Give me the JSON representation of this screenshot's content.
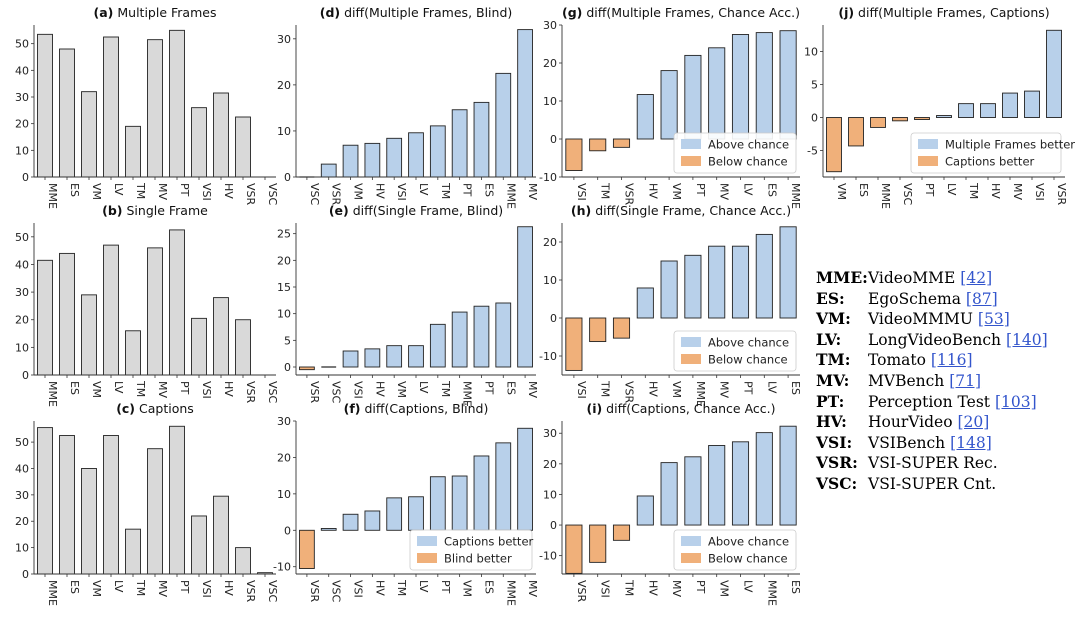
{
  "chart_data": [
    {
      "id": "a",
      "type": "bar",
      "title_label": "(a)",
      "title": "Multiple Frames",
      "categories": [
        "MME",
        "ES",
        "VM",
        "LV",
        "TM",
        "MV",
        "PT",
        "VSI",
        "HV",
        "VSR",
        "VSC"
      ],
      "values": [
        53.5,
        48,
        32,
        52.5,
        19,
        51.5,
        55,
        26,
        31.5,
        22.5,
        0
      ],
      "ylim": [
        0,
        57
      ],
      "yticks": [
        0,
        10,
        20,
        30,
        40,
        50
      ],
      "colors": {
        "bar": "#d9d9d9"
      }
    },
    {
      "id": "b",
      "type": "bar",
      "title_label": "(b)",
      "title": "Single Frame",
      "categories": [
        "MME",
        "ES",
        "VM",
        "LV",
        "TM",
        "MV",
        "PT",
        "VSI",
        "HV",
        "VSR",
        "VSC"
      ],
      "values": [
        41.5,
        44,
        29,
        47,
        16,
        46,
        52.5,
        20.5,
        28,
        20,
        0
      ],
      "ylim": [
        0,
        55
      ],
      "yticks": [
        0,
        10,
        20,
        30,
        40,
        50
      ],
      "colors": {
        "bar": "#d9d9d9"
      }
    },
    {
      "id": "c",
      "type": "bar",
      "title_label": "(c)",
      "title": "Captions",
      "categories": [
        "MME",
        "ES",
        "VM",
        "LV",
        "TM",
        "MV",
        "PT",
        "VSI",
        "HV",
        "VSR",
        "VSC"
      ],
      "values": [
        55.5,
        52.5,
        40,
        52.5,
        17,
        47.5,
        56,
        22,
        29.5,
        10,
        0.5
      ],
      "ylim": [
        0,
        58
      ],
      "yticks": [
        0,
        10,
        20,
        30,
        40,
        50
      ],
      "colors": {
        "bar": "#d9d9d9"
      }
    },
    {
      "id": "d",
      "type": "bar",
      "title_label": "(d)",
      "title": "diff(Multiple Frames, Blind)",
      "categories": [
        "VSC",
        "VSR",
        "VM",
        "HV",
        "VSI",
        "LV",
        "TM",
        "PT",
        "ES",
        "MME",
        "MV"
      ],
      "values": [
        0,
        2.8,
        6.9,
        7.3,
        8.4,
        9.6,
        11.1,
        14.6,
        16.2,
        22.5,
        32
      ],
      "ylim": [
        0,
        33
      ],
      "yticks": [
        0,
        10,
        20,
        30
      ],
      "legend": null
    },
    {
      "id": "e",
      "type": "bar",
      "title_label": "(e)",
      "title": "diff(Single Frame, Blind)",
      "categories": [
        "VSR",
        "VSC",
        "VSI",
        "HV",
        "VM",
        "LV",
        "TM",
        "MME",
        "PT",
        "ES",
        "MV"
      ],
      "values": [
        -0.5,
        0,
        3,
        3.4,
        4,
        4,
        8,
        10.3,
        11.4,
        12,
        26.3
      ],
      "ylim": [
        -1.5,
        27
      ],
      "yticks": [
        0,
        5,
        10,
        15,
        20,
        25
      ],
      "legend": null
    },
    {
      "id": "f",
      "type": "bar",
      "title_label": "(f)",
      "title": "diff(Captions, Blind)",
      "categories": [
        "VSR",
        "VSC",
        "VSI",
        "HV",
        "TM",
        "LV",
        "PT",
        "VM",
        "ES",
        "MME",
        "MV"
      ],
      "values": [
        -10.5,
        0.5,
        4.4,
        5.3,
        8.9,
        9.2,
        14.7,
        14.9,
        20.4,
        24,
        28
      ],
      "ylim": [
        -12,
        30
      ],
      "yticks": [
        -10,
        0,
        10,
        20,
        30
      ],
      "legend": {
        "position": "bottom-right",
        "entries": [
          "Captions better",
          "Blind better"
        ]
      }
    },
    {
      "id": "g",
      "type": "bar",
      "title_label": "(g)",
      "title": "diff(Multiple Frames, Chance Acc.)",
      "categories": [
        "VSI",
        "TM",
        "VSR",
        "HV",
        "VM",
        "PT",
        "MV",
        "LV",
        "ES",
        "MME"
      ],
      "values": [
        -8.3,
        -3.1,
        -2.2,
        11.7,
        18,
        22,
        24,
        27.5,
        28,
        28.5
      ],
      "ylim": [
        -10,
        30
      ],
      "yticks": [
        -10,
        0,
        10,
        20,
        30
      ],
      "legend": {
        "position": "bottom-right",
        "entries": [
          "Above chance",
          "Below chance"
        ]
      }
    },
    {
      "id": "h",
      "type": "bar",
      "title_label": "(h)",
      "title": "diff(Single Frame, Chance Acc.)",
      "categories": [
        "VSI",
        "TM",
        "VSR",
        "HV",
        "VM",
        "MME",
        "MV",
        "PT",
        "LV",
        "ES"
      ],
      "values": [
        -13.8,
        -6.2,
        -5.3,
        7.9,
        15,
        16.5,
        18.9,
        18.9,
        22,
        24
      ],
      "ylim": [
        -15,
        25
      ],
      "yticks": [
        -10,
        0,
        10,
        20
      ],
      "legend": {
        "position": "bottom-right",
        "entries": [
          "Above chance",
          "Below chance"
        ]
      }
    },
    {
      "id": "i",
      "type": "bar",
      "title_label": "(i)",
      "title": "diff(Captions, Chance Acc.)",
      "categories": [
        "VSR",
        "VSI",
        "TM",
        "HV",
        "MV",
        "PT",
        "VM",
        "LV",
        "MME",
        "ES"
      ],
      "values": [
        -15.8,
        -12.2,
        -5,
        9.5,
        20.4,
        22.3,
        26,
        27.2,
        30.2,
        32.3
      ],
      "ylim": [
        -16,
        34
      ],
      "yticks": [
        -10,
        0,
        10,
        20,
        30
      ],
      "legend": {
        "position": "bottom-right",
        "entries": [
          "Above chance",
          "Below chance"
        ]
      }
    },
    {
      "id": "j",
      "type": "bar",
      "title_label": "(j)",
      "title": "diff(Multiple Frames, Captions)",
      "categories": [
        "VM",
        "ES",
        "MME",
        "VSC",
        "PT",
        "LV",
        "TM",
        "HV",
        "MV",
        "VSI",
        "VSR"
      ],
      "values": [
        -8.2,
        -4.3,
        -1.5,
        -0.5,
        -0.3,
        0.3,
        2.1,
        2.1,
        3.7,
        4,
        13.2
      ],
      "ylim": [
        -9,
        14
      ],
      "yticks": [
        -5,
        0,
        5,
        10
      ],
      "legend": {
        "position": "bottom-right",
        "entries": [
          "Multiple Frames better",
          "Captions better"
        ]
      }
    }
  ],
  "colors": {
    "positive": "#b8d0ea",
    "negative": "#f0b07a",
    "neutral": "#d9d9d9",
    "edge": "#222222"
  },
  "abbreviations": [
    {
      "key": "MME",
      "name": "VideoMME",
      "ref": "[42]"
    },
    {
      "key": "ES",
      "name": "EgoSchema",
      "ref": "[87]"
    },
    {
      "key": "VM",
      "name": "VideoMMMU",
      "ref": "[53]"
    },
    {
      "key": "LV",
      "name": "LongVideoBench",
      "ref": "[140]"
    },
    {
      "key": "TM",
      "name": "Tomato",
      "ref": "[116]"
    },
    {
      "key": "MV",
      "name": "MVBench",
      "ref": "[71]"
    },
    {
      "key": "PT",
      "name": "Perception Test",
      "ref": "[103]"
    },
    {
      "key": "HV",
      "name": "HourVideo",
      "ref": "[20]"
    },
    {
      "key": "VSI",
      "name": "VSIBench",
      "ref": "[148]"
    },
    {
      "key": "VSR",
      "name": "VSI-SUPER Rec.",
      "ref": ""
    },
    {
      "key": "VSC",
      "name": "VSI-SUPER Cnt.",
      "ref": ""
    }
  ]
}
